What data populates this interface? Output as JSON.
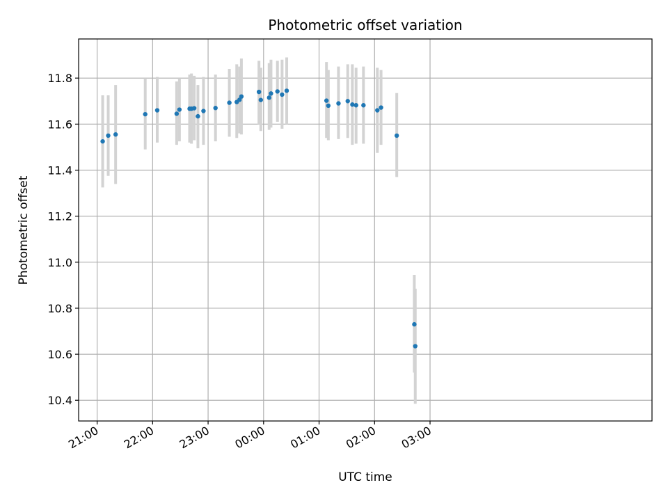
{
  "chart_data": {
    "type": "scatter",
    "title": "Photometric offset variation",
    "xlabel": "UTC time",
    "ylabel": "Photometric offset",
    "x_unit": "minutes",
    "xlim": [
      -20,
      600
    ],
    "ylim": [
      10.31,
      11.97
    ],
    "grid": true,
    "x_ticks": [
      0,
      60,
      120,
      180,
      240,
      300,
      360
    ],
    "x_tick_labels": [
      "21:00",
      "22:00",
      "23:00",
      "00:00",
      "01:00",
      "02:00",
      "03:00"
    ],
    "y_ticks": [
      10.4,
      10.6,
      10.8,
      11.0,
      11.2,
      11.4,
      11.6,
      11.8
    ],
    "y_tick_labels": [
      "10.4",
      "10.6",
      "10.8",
      "11.0",
      "11.2",
      "11.4",
      "11.6",
      "11.8"
    ],
    "marker_color": "#1f77b4",
    "errorbar_color": "#d3d3d3",
    "points": [
      {
        "t": "21:06",
        "y": 11.525,
        "lo": 11.325,
        "hi": 11.725
      },
      {
        "t": "21:12",
        "y": 11.55,
        "lo": 11.375,
        "hi": 11.725
      },
      {
        "t": "21:20",
        "y": 11.555,
        "lo": 11.34,
        "hi": 11.77
      },
      {
        "t": "21:52",
        "y": 11.643,
        "lo": 11.49,
        "hi": 11.8
      },
      {
        "t": "22:05",
        "y": 11.66,
        "lo": 11.52,
        "hi": 11.805
      },
      {
        "t": "22:26",
        "y": 11.645,
        "lo": 11.51,
        "hi": 11.785
      },
      {
        "t": "22:29",
        "y": 11.663,
        "lo": 11.525,
        "hi": 11.8
      },
      {
        "t": "22:40",
        "y": 11.667,
        "lo": 11.52,
        "hi": 11.815
      },
      {
        "t": "22:42",
        "y": 11.667,
        "lo": 11.515,
        "hi": 11.82
      },
      {
        "t": "22:45",
        "y": 11.669,
        "lo": 11.53,
        "hi": 11.81
      },
      {
        "t": "22:49",
        "y": 11.634,
        "lo": 11.495,
        "hi": 11.77
      },
      {
        "t": "22:55",
        "y": 11.657,
        "lo": 11.51,
        "hi": 11.805
      },
      {
        "t": "23:08",
        "y": 11.67,
        "lo": 11.525,
        "hi": 11.815
      },
      {
        "t": "23:23",
        "y": 11.693,
        "lo": 11.545,
        "hi": 11.84
      },
      {
        "t": "23:31",
        "y": 11.696,
        "lo": 11.54,
        "hi": 11.86
      },
      {
        "t": "23:34",
        "y": 11.706,
        "lo": 11.56,
        "hi": 11.85
      },
      {
        "t": "23:36",
        "y": 11.72,
        "lo": 11.555,
        "hi": 11.885
      },
      {
        "t": "23:55",
        "y": 11.74,
        "lo": 11.6,
        "hi": 11.875
      },
      {
        "t": "23:57",
        "y": 11.705,
        "lo": 11.57,
        "hi": 11.845
      },
      {
        "t": "00:06",
        "y": 11.715,
        "lo": 11.575,
        "hi": 11.865
      },
      {
        "t": "00:08",
        "y": 11.733,
        "lo": 11.585,
        "hi": 11.88
      },
      {
        "t": "00:15",
        "y": 11.742,
        "lo": 11.61,
        "hi": 11.875
      },
      {
        "t": "00:20",
        "y": 11.728,
        "lo": 11.58,
        "hi": 11.88
      },
      {
        "t": "00:25",
        "y": 11.745,
        "lo": 11.6,
        "hi": 11.89
      },
      {
        "t": "01:08",
        "y": 11.702,
        "lo": 11.54,
        "hi": 11.87
      },
      {
        "t": "01:10",
        "y": 11.68,
        "lo": 11.53,
        "hi": 11.835
      },
      {
        "t": "01:21",
        "y": 11.69,
        "lo": 11.535,
        "hi": 11.85
      },
      {
        "t": "01:31",
        "y": 11.7,
        "lo": 11.54,
        "hi": 11.86
      },
      {
        "t": "01:36",
        "y": 11.685,
        "lo": 11.51,
        "hi": 11.86
      },
      {
        "t": "01:40",
        "y": 11.682,
        "lo": 11.515,
        "hi": 11.845
      },
      {
        "t": "01:48",
        "y": 11.682,
        "lo": 11.515,
        "hi": 11.85
      },
      {
        "t": "02:03",
        "y": 11.66,
        "lo": 11.475,
        "hi": 11.845
      },
      {
        "t": "02:07",
        "y": 11.672,
        "lo": 11.51,
        "hi": 11.835
      },
      {
        "t": "02:24",
        "y": 11.55,
        "lo": 11.37,
        "hi": 11.735
      },
      {
        "t": "02:43",
        "y": 10.73,
        "lo": 10.52,
        "hi": 10.945
      },
      {
        "t": "02:44",
        "y": 10.635,
        "lo": 10.385,
        "hi": 10.885
      }
    ]
  }
}
